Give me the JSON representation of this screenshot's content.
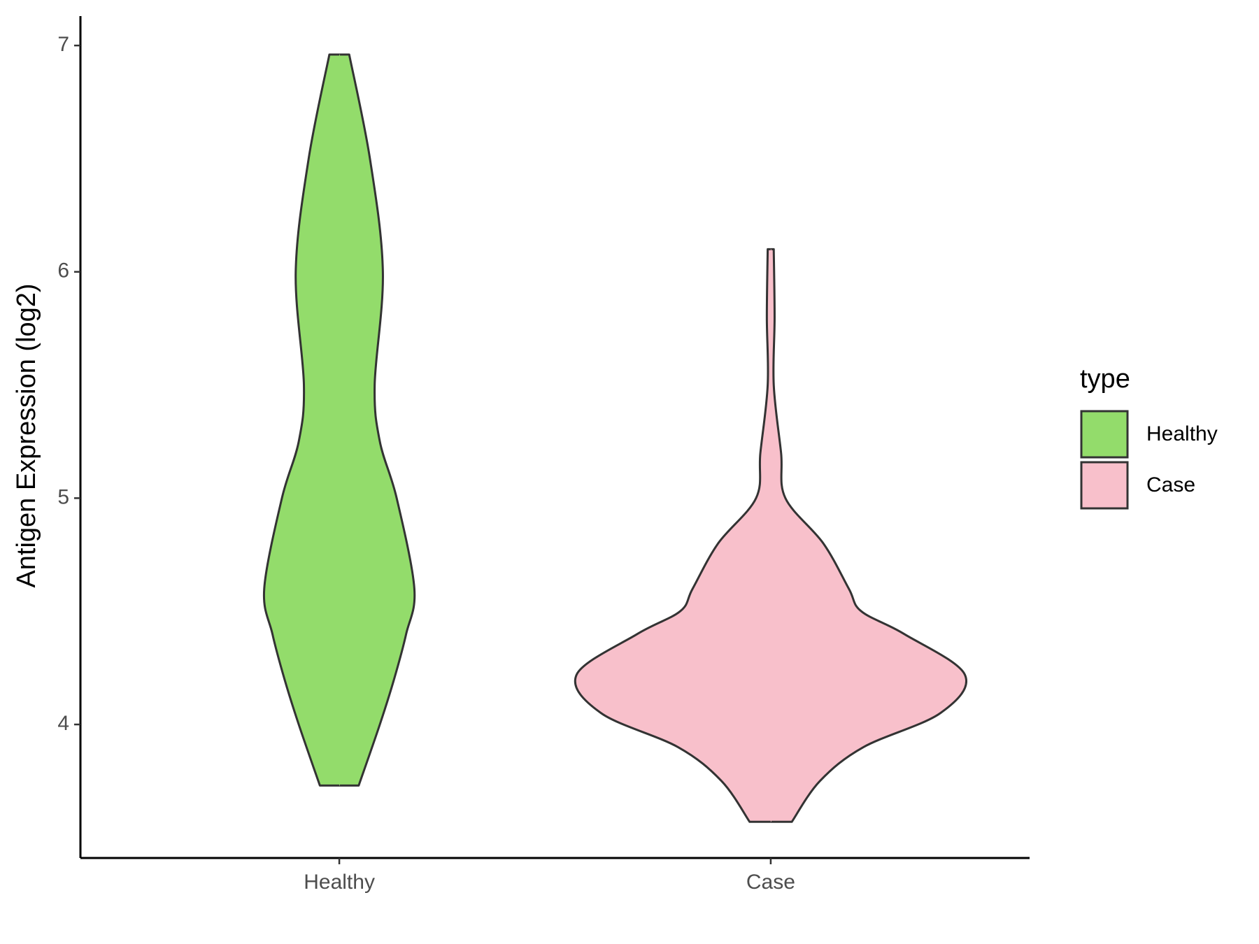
{
  "chart_data": {
    "type": "violin",
    "ylabel": "Antigen Expression (log2)",
    "categories": [
      "Healthy",
      "Case"
    ],
    "series": [
      {
        "name": "Healthy",
        "color": "#93dc6b",
        "y": [
          6.96,
          6.5,
          6.0,
          5.5,
          5.25,
          5.0,
          4.6,
          4.4,
          4.2,
          4.0,
          3.73
        ],
        "width": [
          0.023,
          0.071,
          0.101,
          0.082,
          0.094,
          0.133,
          0.174,
          0.155,
          0.127,
          0.094,
          0.045
        ]
      },
      {
        "name": "Case",
        "color": "#f8c0cb",
        "y": [
          6.1,
          5.8,
          5.5,
          5.2,
          5.0,
          4.8,
          4.6,
          4.5,
          4.4,
          4.22,
          4.05,
          3.9,
          3.75,
          3.57
        ],
        "width": [
          0.007,
          0.009,
          0.007,
          0.024,
          0.034,
          0.122,
          0.181,
          0.21,
          0.309,
          0.45,
          0.393,
          0.215,
          0.114,
          0.049
        ]
      }
    ],
    "ylim": [
      3.41,
      7.13
    ],
    "yticks": [
      4,
      5,
      6,
      7
    ],
    "legend_title": "type",
    "legend": "right"
  }
}
